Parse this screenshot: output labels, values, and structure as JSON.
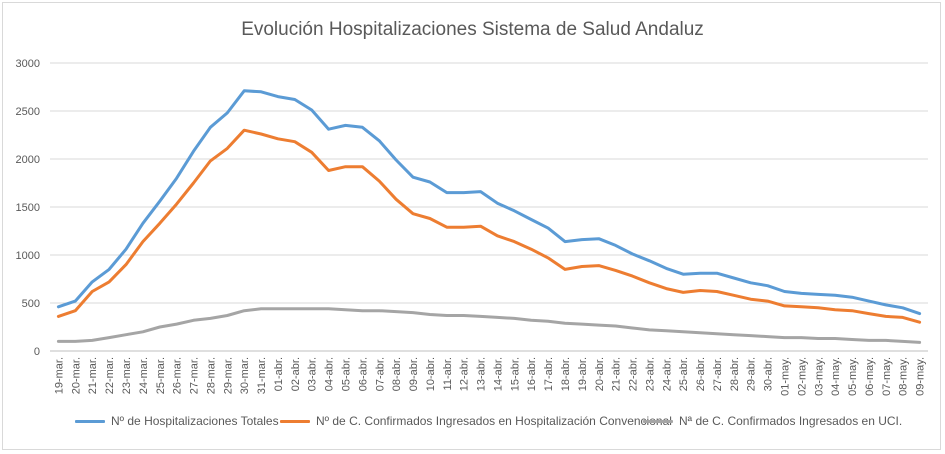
{
  "chart_data": {
    "type": "line",
    "title": "Evolución Hospitalizaciones Sistema de Salud Andaluz",
    "xlabel": "",
    "ylabel": "",
    "ylim": [
      0,
      3000
    ],
    "yticks": [
      "0",
      "500",
      "1000",
      "1500",
      "2000",
      "2500",
      "3000"
    ],
    "grid": true,
    "legend_position": "bottom",
    "categories": [
      "19-mar.",
      "20-mar.",
      "21-mar.",
      "22-mar.",
      "23-mar.",
      "24-mar.",
      "25-mar.",
      "26-mar.",
      "27-mar.",
      "28-mar.",
      "29-mar.",
      "30-mar.",
      "31-mar.",
      "01-abr.",
      "02-abr.",
      "03-abr.",
      "04-abr.",
      "05-abr.",
      "06-abr.",
      "07-abr.",
      "08-abr.",
      "09-abr.",
      "10-abr.",
      "11-abr.",
      "12-abr.",
      "13-abr.",
      "14-abr.",
      "15-abr.",
      "16-abr.",
      "17-abr.",
      "18-abr.",
      "19-abr.",
      "20-abr.",
      "21-abr.",
      "22-abr.",
      "23-abr.",
      "24-abr.",
      "25-abr.",
      "26-abr.",
      "27-abr.",
      "28-abr.",
      "29-abr.",
      "30-abr.",
      "01-may.",
      "02-may.",
      "03-may.",
      "04-may.",
      "05-may.",
      "06-may.",
      "07-may.",
      "08-may.",
      "09-may."
    ],
    "series": [
      {
        "name": "Nº de Hospitalizaciones Totales",
        "color": "#5b9bd5",
        "values": [
          460,
          520,
          720,
          850,
          1060,
          1330,
          1560,
          1800,
          2080,
          2330,
          2480,
          2710,
          2700,
          2650,
          2620,
          2510,
          2310,
          2350,
          2330,
          2190,
          1990,
          1810,
          1760,
          1650,
          1650,
          1660,
          1540,
          1460,
          1370,
          1280,
          1140,
          1160,
          1170,
          1100,
          1010,
          940,
          860,
          800,
          810,
          810,
          760,
          710,
          680,
          620,
          600,
          590,
          580,
          560,
          520,
          480,
          450,
          390
        ]
      },
      {
        "name": "Nº de C. Confirmados Ingresados en Hospitalización Convencional",
        "color": "#ed7d31",
        "values": [
          360,
          420,
          620,
          720,
          900,
          1140,
          1330,
          1530,
          1750,
          1980,
          2110,
          2300,
          2260,
          2210,
          2180,
          2070,
          1880,
          1920,
          1920,
          1770,
          1580,
          1430,
          1380,
          1290,
          1290,
          1300,
          1200,
          1140,
          1060,
          970,
          850,
          880,
          890,
          840,
          780,
          710,
          650,
          610,
          630,
          620,
          580,
          540,
          520,
          470,
          460,
          450,
          430,
          420,
          390,
          360,
          350,
          300
        ]
      },
      {
        "name": "Nª de C. Confirmados Ingresados en UCI.",
        "color": "#a5a5a5",
        "values": [
          100,
          100,
          110,
          140,
          170,
          200,
          250,
          280,
          320,
          340,
          370,
          420,
          440,
          440,
          440,
          440,
          440,
          430,
          420,
          420,
          410,
          400,
          380,
          370,
          370,
          360,
          350,
          340,
          320,
          310,
          290,
          280,
          270,
          260,
          240,
          220,
          210,
          200,
          190,
          180,
          170,
          160,
          150,
          140,
          140,
          130,
          130,
          120,
          110,
          110,
          100,
          90
        ]
      }
    ]
  }
}
